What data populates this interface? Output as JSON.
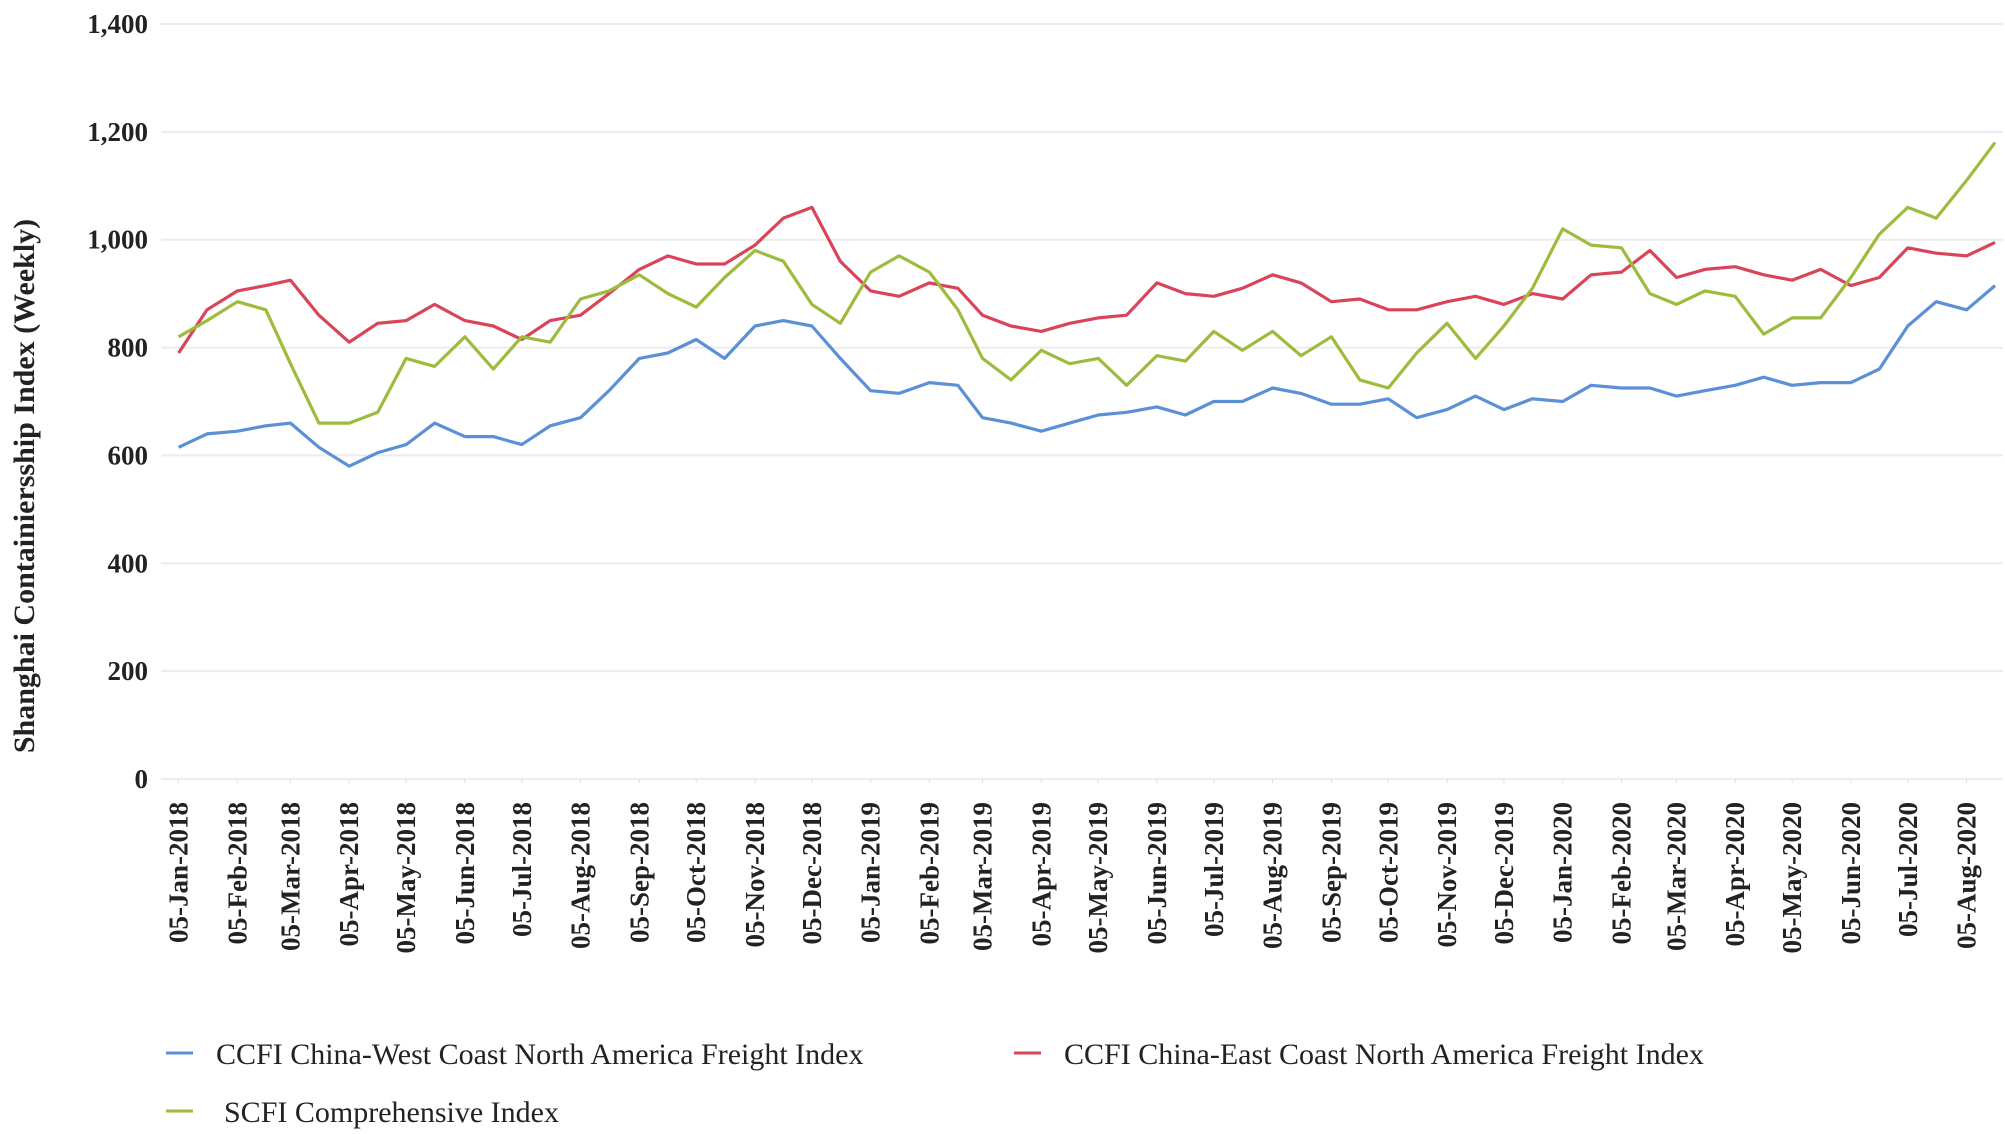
{
  "chart_data": {
    "type": "line",
    "y_label": "Shanghai Containiersship Index (Weekly)",
    "x": [
      "2018-01-05",
      "2018-01-20",
      "2018-02-05",
      "2018-02-20",
      "2018-03-05",
      "2018-03-20",
      "2018-04-05",
      "2018-04-20",
      "2018-05-05",
      "2018-05-20",
      "2018-06-05",
      "2018-06-20",
      "2018-07-05",
      "2018-07-20",
      "2018-08-05",
      "2018-08-20",
      "2018-09-05",
      "2018-09-20",
      "2018-10-05",
      "2018-10-20",
      "2018-11-05",
      "2018-11-20",
      "2018-12-05",
      "2018-12-20",
      "2019-01-05",
      "2019-01-20",
      "2019-02-05",
      "2019-02-20",
      "2019-03-05",
      "2019-03-20",
      "2019-04-05",
      "2019-04-20",
      "2019-05-05",
      "2019-05-20",
      "2019-06-05",
      "2019-06-20",
      "2019-07-05",
      "2019-07-20",
      "2019-08-05",
      "2019-08-20",
      "2019-09-05",
      "2019-09-20",
      "2019-10-05",
      "2019-10-20",
      "2019-11-05",
      "2019-11-20",
      "2019-12-05",
      "2019-12-20",
      "2020-01-05",
      "2020-01-20",
      "2020-02-05",
      "2020-02-20",
      "2020-03-05",
      "2020-03-20",
      "2020-04-05",
      "2020-04-20",
      "2020-05-05",
      "2020-05-20",
      "2020-06-05",
      "2020-06-20",
      "2020-07-05",
      "2020-07-20",
      "2020-08-05",
      "2020-08-20"
    ],
    "series": [
      {
        "name": "CCFI China-West Coast North America Freight Index",
        "color": "#5b8fd6",
        "values": [
          615,
          640,
          645,
          655,
          660,
          615,
          580,
          605,
          620,
          660,
          635,
          635,
          620,
          655,
          670,
          720,
          780,
          790,
          815,
          780,
          840,
          850,
          840,
          780,
          720,
          715,
          735,
          730,
          670,
          660,
          645,
          660,
          675,
          680,
          690,
          675,
          700,
          700,
          725,
          715,
          695,
          695,
          705,
          670,
          685,
          710,
          685,
          705,
          700,
          730,
          725,
          725,
          710,
          720,
          730,
          745,
          730,
          735,
          735,
          760,
          840,
          885,
          870,
          915
        ]
      },
      {
        "name": "CCFI China-East Coast North America Freight Index",
        "color": "#d9445a",
        "values": [
          790,
          870,
          905,
          915,
          925,
          860,
          810,
          845,
          850,
          880,
          850,
          840,
          815,
          850,
          860,
          900,
          945,
          970,
          955,
          955,
          990,
          1040,
          1060,
          960,
          905,
          895,
          920,
          910,
          860,
          840,
          830,
          845,
          855,
          860,
          920,
          900,
          895,
          910,
          935,
          920,
          885,
          890,
          870,
          870,
          885,
          895,
          880,
          900,
          890,
          935,
          940,
          980,
          930,
          945,
          950,
          935,
          925,
          945,
          915,
          930,
          985,
          975,
          970,
          995
        ]
      },
      {
        "name": "SCFI Comprehensive Index",
        "color": "#9dbb3c",
        "values": [
          820,
          850,
          885,
          870,
          770,
          660,
          660,
          680,
          780,
          765,
          820,
          760,
          820,
          810,
          890,
          905,
          935,
          900,
          875,
          930,
          980,
          960,
          880,
          845,
          940,
          970,
          940,
          870,
          780,
          740,
          795,
          770,
          780,
          730,
          785,
          775,
          830,
          795,
          830,
          785,
          820,
          740,
          725,
          790,
          845,
          780,
          840,
          910,
          1020,
          990,
          985,
          900,
          880,
          905,
          895,
          825,
          855,
          855,
          930,
          1010,
          1060,
          1040,
          1110,
          1180
        ]
      }
    ],
    "xlim": [
      "2018-01-01",
      "2020-08-20"
    ],
    "xticks": [
      {
        "value": "2018-01-05",
        "label": "05-Jan-2018"
      },
      {
        "value": "2018-02-05",
        "label": "05-Feb-2018"
      },
      {
        "value": "2018-03-05",
        "label": "05-Mar-2018"
      },
      {
        "value": "2018-04-05",
        "label": "05-Apr-2018"
      },
      {
        "value": "2018-05-05",
        "label": "05-May-2018"
      },
      {
        "value": "2018-06-05",
        "label": "05-Jun-2018"
      },
      {
        "value": "2018-07-05",
        "label": "05-Jul-2018"
      },
      {
        "value": "2018-08-05",
        "label": "05-Aug-2018"
      },
      {
        "value": "2018-09-05",
        "label": "05-Sep-2018"
      },
      {
        "value": "2018-10-05",
        "label": "05-Oct-2018"
      },
      {
        "value": "2018-11-05",
        "label": "05-Nov-2018"
      },
      {
        "value": "2018-12-05",
        "label": "05-Dec-2018"
      },
      {
        "value": "2019-01-05",
        "label": "05-Jan-2019"
      },
      {
        "value": "2019-02-05",
        "label": "05-Feb-2019"
      },
      {
        "value": "2019-03-05",
        "label": "05-Mar-2019"
      },
      {
        "value": "2019-04-05",
        "label": "05-Apr-2019"
      },
      {
        "value": "2019-05-05",
        "label": "05-May-2019"
      },
      {
        "value": "2019-06-05",
        "label": "05-Jun-2019"
      },
      {
        "value": "2019-07-05",
        "label": "05-Jul-2019"
      },
      {
        "value": "2019-08-05",
        "label": "05-Aug-2019"
      },
      {
        "value": "2019-09-05",
        "label": "05-Sep-2019"
      },
      {
        "value": "2019-10-05",
        "label": "05-Oct-2019"
      },
      {
        "value": "2019-11-05",
        "label": "05-Nov-2019"
      },
      {
        "value": "2019-12-05",
        "label": "05-Dec-2019"
      },
      {
        "value": "2020-01-05",
        "label": "05-Jan-2020"
      },
      {
        "value": "2020-02-05",
        "label": "05-Feb-2020"
      },
      {
        "value": "2020-03-05",
        "label": "05-Mar-2020"
      },
      {
        "value": "2020-04-05",
        "label": "05-Apr-2020"
      },
      {
        "value": "2020-05-05",
        "label": "05-May-2020"
      },
      {
        "value": "2020-06-05",
        "label": "05-Jun-2020"
      },
      {
        "value": "2020-07-05",
        "label": "05-Jul-2020"
      },
      {
        "value": "2020-08-05",
        "label": "05-Aug-2020"
      }
    ],
    "ylim": [
      0,
      1400
    ],
    "yticks": [
      0,
      200,
      400,
      600,
      800,
      {
        "value": 1000,
        "label": "1,000"
      },
      {
        "value": 1200,
        "label": "1,200"
      },
      {
        "value": 1400,
        "label": "1,400"
      }
    ],
    "grid": true,
    "legend": "bottom"
  }
}
